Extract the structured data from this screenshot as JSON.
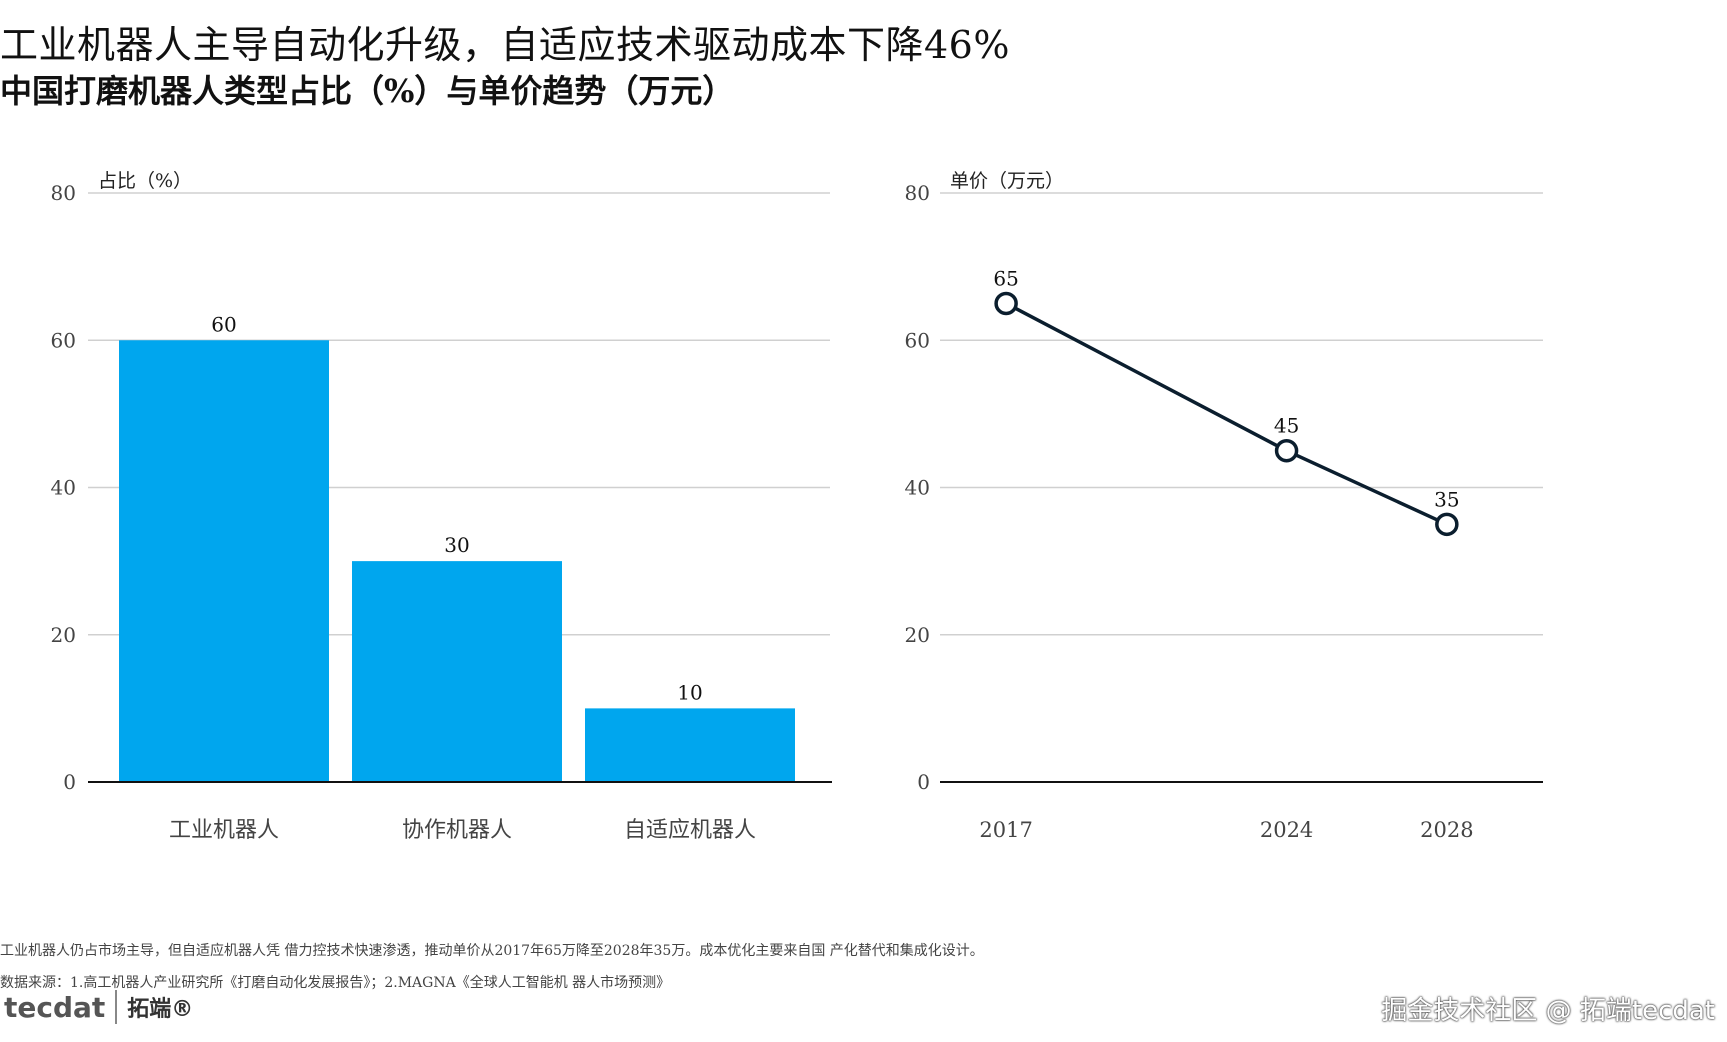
{
  "header": {
    "title": "工业机器人主导自动化升级，自适应技术驱动成本下降46%",
    "subtitle": "中国打磨机器人类型占比（%）与单价趋势（万元）"
  },
  "chart_data": [
    {
      "type": "bar",
      "ylabel": "占比（%）",
      "categories": [
        "工业机器人",
        "协作机器人",
        "自适应机器人"
      ],
      "values": [
        60,
        30,
        10
      ],
      "ylim": [
        0,
        80
      ],
      "yticks": [
        0,
        20,
        40,
        60,
        80
      ],
      "color": "#00a6ee",
      "grid": true
    },
    {
      "type": "line",
      "ylabel": "单价（万元）",
      "x": [
        2017,
        2024,
        2028
      ],
      "values": [
        65,
        45,
        35
      ],
      "ylim": [
        0,
        80
      ],
      "yticks": [
        0,
        20,
        40,
        60,
        80
      ],
      "color": "#0b1e2e",
      "grid": true
    }
  ],
  "footer": {
    "note": "工业机器人仍占市场主导，但自适应机器人凭 借力控技术快速渗透，推动单价从2017年65万降至2028年35万。成本优化主要来自国 产化替代和集成化设计。",
    "source": "数据来源：1.高工机器人产业研究所《打磨自动化发展报告》；2.MAGNA《全球人工智能机 器人市场预测》",
    "logo_text": "tecdat",
    "logo_cn": "拓端®",
    "watermark": "掘金技术社区 @ 拓端tecdat"
  }
}
